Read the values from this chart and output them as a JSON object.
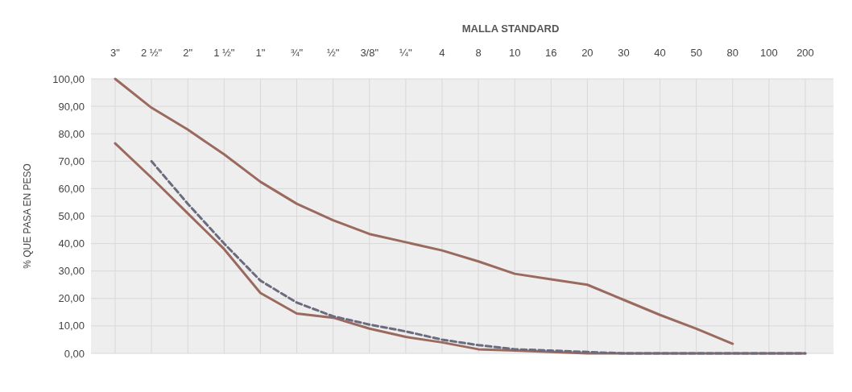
{
  "chart_data": {
    "type": "line",
    "xlabel": "MALLA STANDARD",
    "ylabel": "% QUE PASA EN PESO",
    "categories": [
      "3\"",
      "2 ½\"",
      "2\"",
      "1 ½\"",
      "1\"",
      "¾\"",
      "½\"",
      "3/8\"",
      "¼\"",
      "4",
      "8",
      "10",
      "16",
      "20",
      "30",
      "40",
      "50",
      "80",
      "100",
      "200"
    ],
    "series": [
      {
        "color": "#9a6a5e",
        "values": [
          100,
          89.5,
          81.5,
          72.5,
          62.5,
          54.5,
          48.5,
          43.5,
          40.5,
          37.5,
          33.5,
          29,
          27,
          25,
          19.5,
          14,
          9,
          3.5,
          null,
          null
        ]
      },
      {
        "color": "#9a6a5e",
        "values": [
          76.5,
          64,
          51,
          38,
          22,
          14.5,
          13,
          9,
          6,
          4,
          1.5,
          1,
          0.5,
          0,
          0,
          0,
          0,
          0,
          0,
          0
        ]
      },
      {
        "color": "#6b6b80",
        "line_style": "dashed",
        "values": [
          null,
          70,
          54.5,
          40,
          26.5,
          18.5,
          13.5,
          10.5,
          8,
          5,
          3,
          1.5,
          1,
          0.5,
          0,
          0,
          0,
          0,
          0,
          0
        ]
      }
    ],
    "ylim": [
      0,
      100
    ],
    "yticks": [
      {
        "value": 0,
        "label": "0,00"
      },
      {
        "value": 10,
        "label": "10,00"
      },
      {
        "value": 20,
        "label": "20,00"
      },
      {
        "value": 30,
        "label": "30,00"
      },
      {
        "value": 40,
        "label": "40,00"
      },
      {
        "value": 50,
        "label": "50,00"
      },
      {
        "value": 60,
        "label": "60,00"
      },
      {
        "value": 70,
        "label": "70,00"
      },
      {
        "value": 80,
        "label": "80,00"
      },
      {
        "value": 90,
        "label": "90,00"
      },
      {
        "value": 100,
        "label": "100,00"
      }
    ],
    "grid": true,
    "marker": "none",
    "line_style": "solid"
  }
}
